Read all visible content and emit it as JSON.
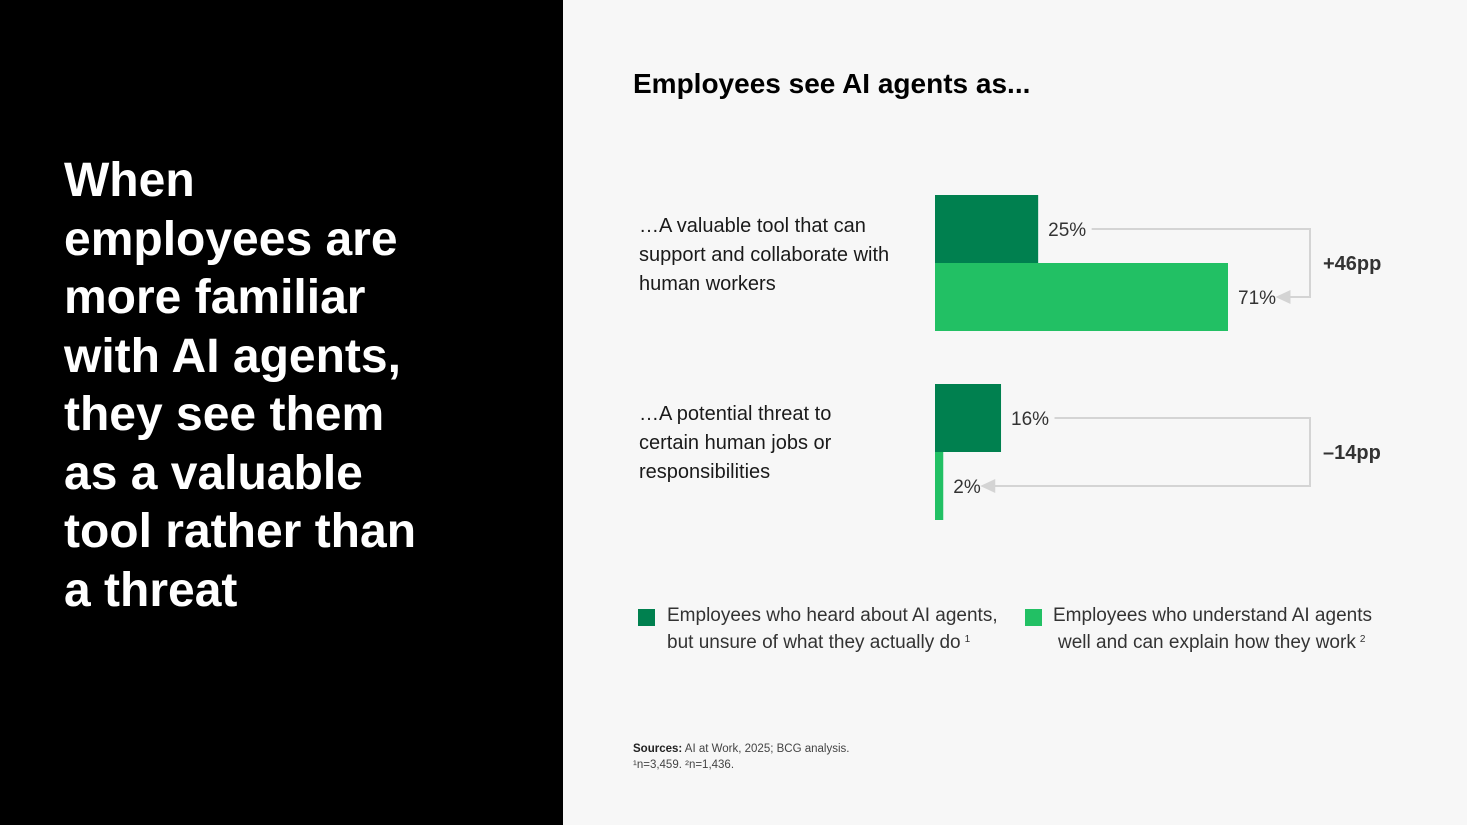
{
  "headline": {
    "lines": [
      "When",
      "employees are",
      "more familiar",
      "with AI agents,",
      "they see them",
      "as a valuable",
      "tool rather than",
      "a threat"
    ]
  },
  "colors": {
    "background_left": "#000000",
    "background_right": "#f7f7f7",
    "series_dark": "#00804f",
    "series_light": "#22c064",
    "connector": "#d4d4d4"
  },
  "chart_data": {
    "type": "bar",
    "orientation": "horizontal",
    "title": "Employees see AI agents as...",
    "categories": [
      {
        "lines": [
          "…A valuable tool that can",
          "support and collaborate with",
          "human workers"
        ],
        "values": [
          25,
          71
        ],
        "value_labels": [
          "25%",
          "71%"
        ],
        "difference_label": "+46pp"
      },
      {
        "lines": [
          "…A potential threat to",
          "certain human jobs or",
          "responsibilities"
        ],
        "values": [
          16,
          2
        ],
        "value_labels": [
          "16%",
          "2%"
        ],
        "difference_label": "–14pp"
      }
    ],
    "series": [
      {
        "lines": [
          "Employees who heard about AI agents,",
          "but unsure of what they actually do"
        ],
        "footnote_marker": "1",
        "color": "#00804f"
      },
      {
        "lines": [
          "Employees who understand AI agents",
          "well and can explain how they work"
        ],
        "footnote_marker": "2",
        "color": "#22c064"
      }
    ],
    "xlim": [
      0,
      100
    ],
    "grid": false,
    "legend_position": "bottom"
  },
  "footnotes": {
    "sources_label": "Sources:",
    "sources_text": "AI at Work, 2025; BCG analysis.",
    "sample_text": "¹n=3,459.  ²n=1,436."
  }
}
